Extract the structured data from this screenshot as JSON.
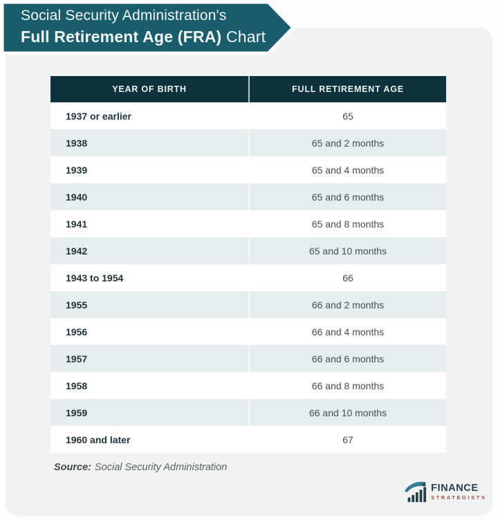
{
  "banner": {
    "line1": "Social Security Administration's",
    "line2_bold": "Full Retirement Age (FRA)",
    "line2_rest": " Chart"
  },
  "chart_data": {
    "type": "table",
    "title": "Social Security Administration's Full Retirement Age (FRA) Chart",
    "columns": [
      "YEAR OF BIRTH",
      "FULL RETIREMENT AGE"
    ],
    "rows": [
      [
        "1937 or earlier",
        "65"
      ],
      [
        "1938",
        "65 and 2 months"
      ],
      [
        "1939",
        "65 and 4 months"
      ],
      [
        "1940",
        "65 and 6 months"
      ],
      [
        "1941",
        "65 and 8 months"
      ],
      [
        "1942",
        "65 and 10 months"
      ],
      [
        "1943 to 1954",
        "66"
      ],
      [
        "1955",
        "66 and 2 months"
      ],
      [
        "1956",
        "66 and 4 months"
      ],
      [
        "1957",
        "66 and 6 months"
      ],
      [
        "1958",
        "66 and 8 months"
      ],
      [
        "1959",
        "66 and 10 months"
      ],
      [
        "1960 and later",
        "67"
      ]
    ],
    "source": "Social Security Administration",
    "layout": {
      "striped": true,
      "stripe_color": "#e5edef",
      "header_color": "#0e323c"
    }
  },
  "source_line": {
    "label": "Source:",
    "text": "Social Security Administration"
  },
  "logo": {
    "name": "FINANCE",
    "subname": "STRATEGISTS",
    "icon": "bar-chart-swoosh-icon"
  },
  "colors": {
    "banner_teal": "#1a5d6d",
    "header_dark": "#0e323c",
    "row_alt": "#e5edef",
    "card_bg": "#f1f2f2",
    "logo_navy": "#24404b",
    "logo_red": "#a84c4b"
  }
}
